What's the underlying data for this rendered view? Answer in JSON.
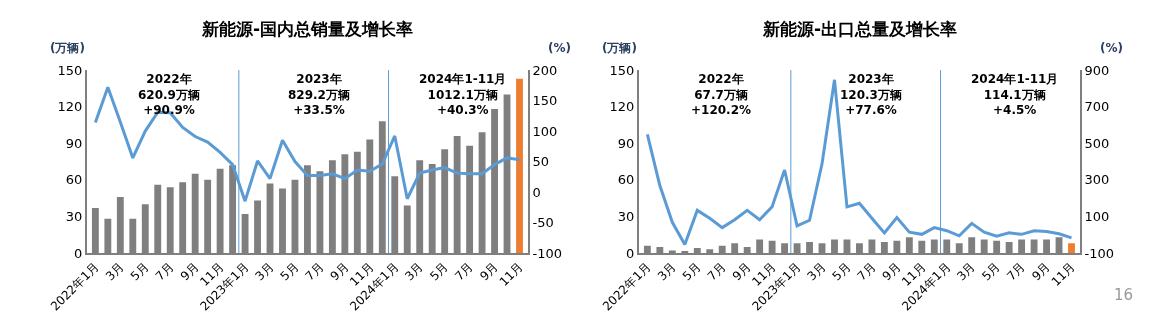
{
  "chart_data": [
    {
      "type": "bar",
      "title": "新能源-国内总销量及增长率",
      "ylabel": "(万辆)",
      "y2label": "(%)",
      "categories": [
        "2022年1月",
        null,
        "3月",
        null,
        "5月",
        null,
        "7月",
        null,
        "9月",
        null,
        "11月",
        null,
        "2023年1月",
        null,
        "3月",
        null,
        "5月",
        null,
        "7月",
        null,
        "9月",
        null,
        "11月",
        null,
        "2024年1月",
        null,
        "3月",
        null,
        "5月",
        null,
        "7月",
        null,
        "9月",
        null,
        "11月"
      ],
      "series": [
        {
          "colors": [
            "#7f7f7f",
            "#7f7f7f",
            "#7f7f7f",
            "#7f7f7f",
            "#7f7f7f",
            "#7f7f7f",
            "#7f7f7f",
            "#7f7f7f",
            "#7f7f7f",
            "#7f7f7f",
            "#7f7f7f",
            "#7f7f7f",
            "#7f7f7f",
            "#7f7f7f",
            "#7f7f7f",
            "#7f7f7f",
            "#7f7f7f",
            "#7f7f7f",
            "#7f7f7f",
            "#7f7f7f",
            "#7f7f7f",
            "#7f7f7f",
            "#7f7f7f",
            "#7f7f7f",
            "#7f7f7f",
            "#7f7f7f",
            "#7f7f7f",
            "#7f7f7f",
            "#7f7f7f",
            "#7f7f7f",
            "#7f7f7f",
            "#7f7f7f",
            "#7f7f7f",
            "#7f7f7f",
            "#ed7d31"
          ],
          "values": [
            37,
            28,
            46,
            28,
            40,
            56,
            54,
            58,
            65,
            60,
            69,
            72,
            32,
            43,
            57,
            53,
            60,
            72,
            67,
            76,
            81,
            83,
            93,
            108,
            63,
            39,
            76,
            73,
            85,
            96,
            88,
            99,
            118,
            130,
            143
          ]
        },
        {
          "type": "line",
          "axis": "y2",
          "color": "#5b9bd5",
          "values": [
            114,
            172,
            115,
            56,
            100,
            131,
            130,
            106,
            91,
            82,
            65,
            45,
            -15,
            51,
            22,
            85,
            50,
            27,
            27,
            30,
            22,
            36,
            34,
            46,
            92,
            -11,
            31,
            36,
            40,
            31,
            30,
            30,
            45,
            56,
            53
          ]
        }
      ],
      "ylim": [
        0,
        150
      ],
      "yticks": [
        0,
        30,
        60,
        90,
        120,
        150
      ],
      "y2lim": [
        -100,
        200
      ],
      "y2ticks": [
        -100,
        -50,
        0,
        50,
        100,
        150,
        200
      ],
      "annotations": [
        "2022年\n620.9万辆\n+90.9%",
        "2023年\n829.2万辆\n+33.5%",
        "2024年1-11月\n1012.1万辆\n+40.3%"
      ]
    },
    {
      "type": "bar",
      "title": "新能源-出口总量及增长率",
      "ylabel": "(万辆)",
      "y2label": "(%)",
      "categories": [
        "2022年1月",
        null,
        "3月",
        null,
        "5月",
        null,
        "7月",
        null,
        "9月",
        null,
        "11月",
        null,
        "2023年1月",
        null,
        "3月",
        null,
        "5月",
        null,
        "7月",
        null,
        "9月",
        null,
        "11月",
        null,
        "2024年1月",
        null,
        "3月",
        null,
        "5月",
        null,
        "7月",
        null,
        "9月",
        null,
        "11月"
      ],
      "series": [
        {
          "colors": [
            "#7f7f7f",
            "#7f7f7f",
            "#7f7f7f",
            "#7f7f7f",
            "#7f7f7f",
            "#7f7f7f",
            "#7f7f7f",
            "#7f7f7f",
            "#7f7f7f",
            "#7f7f7f",
            "#7f7f7f",
            "#7f7f7f",
            "#7f7f7f",
            "#7f7f7f",
            "#7f7f7f",
            "#7f7f7f",
            "#7f7f7f",
            "#7f7f7f",
            "#7f7f7f",
            "#7f7f7f",
            "#7f7f7f",
            "#7f7f7f",
            "#7f7f7f",
            "#7f7f7f",
            "#7f7f7f",
            "#7f7f7f",
            "#7f7f7f",
            "#7f7f7f",
            "#7f7f7f",
            "#7f7f7f",
            "#7f7f7f",
            "#7f7f7f",
            "#7f7f7f",
            "#7f7f7f",
            "#ed7d31"
          ],
          "values": [
            6,
            5,
            2,
            1,
            4,
            3,
            6,
            8,
            5,
            11,
            10,
            8,
            8,
            9,
            8,
            11,
            11,
            8,
            11,
            9,
            10,
            13,
            10,
            11,
            11,
            8,
            13,
            11,
            10,
            9,
            11,
            11,
            11,
            13,
            8
          ]
        },
        {
          "type": "line",
          "axis": "y2",
          "color": "#5b9bd5",
          "values": [
            548,
            269,
            68,
            -54,
            133,
            90,
            39,
            82,
            133,
            82,
            153,
            354,
            48,
            79,
            388,
            847,
            152,
            172,
            90,
            10,
            94,
            14,
            2,
            39,
            22,
            -6,
            62,
            14,
            -8,
            10,
            2,
            22,
            17,
            5,
            -17
          ]
        }
      ],
      "ylim": [
        0,
        150
      ],
      "yticks": [
        0,
        30,
        60,
        90,
        120,
        150
      ],
      "y2lim": [
        -100,
        900
      ],
      "y2ticks": [
        -100,
        100,
        300,
        500,
        700,
        900
      ],
      "annotations": [
        "2022年\n67.7万辆\n+120.2%",
        "2023年\n120.3万辆\n+77.6%",
        "2024年1-11月\n114.1万辆\n+4.5%",
        "16"
      ]
    }
  ]
}
